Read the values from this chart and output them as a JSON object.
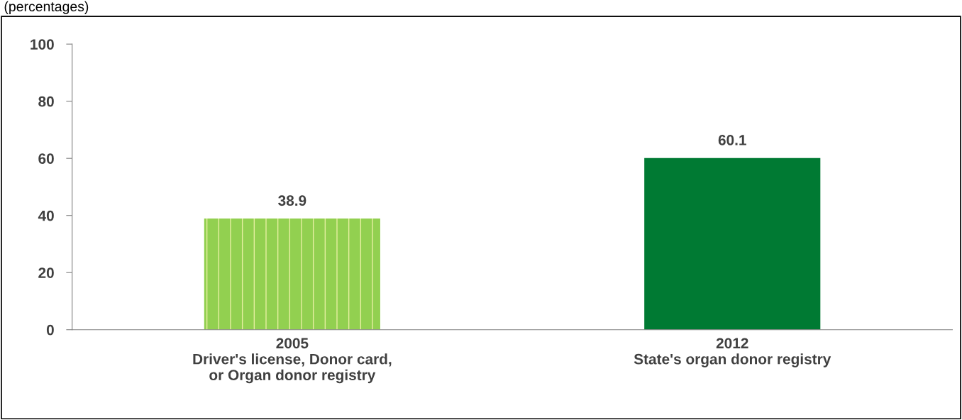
{
  "chart_data": {
    "type": "bar",
    "subtitle": "(percentages)",
    "categories": [
      "2005\nDriver's license, Donor card,\nor Organ donor registry",
      "2012\nState's organ donor registry"
    ],
    "values": [
      38.9,
      60.1
    ],
    "colors": [
      "#92d050",
      "#007a33"
    ],
    "ylim": [
      0,
      100
    ],
    "yticks": [
      0,
      20,
      40,
      60,
      80,
      100
    ],
    "grid": false,
    "data_labels": true
  }
}
